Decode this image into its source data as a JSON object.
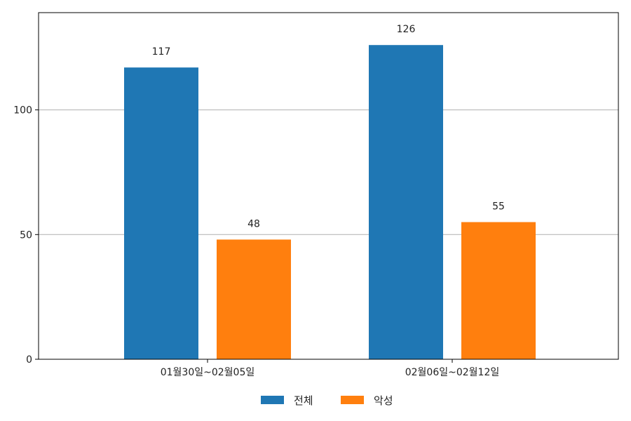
{
  "chart_data": {
    "type": "bar",
    "categories": [
      "01월30일~02월05일",
      "02월06일~02월12일"
    ],
    "series": [
      {
        "name": "전체",
        "values": [
          117,
          126
        ],
        "color": "#1f77b4"
      },
      {
        "name": "악성",
        "values": [
          48,
          55
        ],
        "color": "#ff7f0e"
      }
    ],
    "ylim": [
      0,
      139
    ],
    "yticks": [
      0,
      50,
      100
    ],
    "grid": "y",
    "legend_position": "bottom-center",
    "data_labels": true
  }
}
